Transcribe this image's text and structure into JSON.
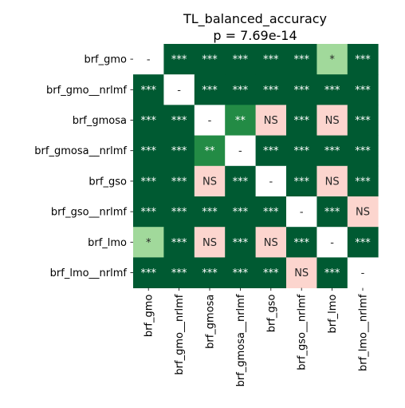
{
  "chart_data": {
    "type": "heatmap",
    "title": "TL_balanced_accuracy",
    "subtitle": "p = 7.69e-14",
    "row_labels": [
      "brf_gmo",
      "brf_gmo__nrlmf",
      "brf_gmosa",
      "brf_gmosa__nrlmf",
      "brf_gso",
      "brf_gso__nrlmf",
      "brf_lmo",
      "brf_lmo__nrlmf"
    ],
    "col_labels": [
      "brf_gmo",
      "brf_gmo__nrlmf",
      "brf_gmosa",
      "brf_gmosa__nrlmf",
      "brf_gso",
      "brf_gso__nrlmf",
      "brf_lmo",
      "brf_lmo__nrlmf"
    ],
    "cells": [
      [
        "-",
        "***",
        "***",
        "***",
        "***",
        "***",
        "*",
        "***"
      ],
      [
        "***",
        "-",
        "***",
        "***",
        "***",
        "***",
        "***",
        "***"
      ],
      [
        "***",
        "***",
        "-",
        "**",
        "NS",
        "***",
        "NS",
        "***"
      ],
      [
        "***",
        "***",
        "**",
        "-",
        "***",
        "***",
        "***",
        "***"
      ],
      [
        "***",
        "***",
        "NS",
        "***",
        "-",
        "***",
        "NS",
        "***"
      ],
      [
        "***",
        "***",
        "***",
        "***",
        "***",
        "-",
        "***",
        "NS"
      ],
      [
        "*",
        "***",
        "NS",
        "***",
        "NS",
        "***",
        "-",
        "***"
      ],
      [
        "***",
        "***",
        "***",
        "***",
        "***",
        "NS",
        "***",
        "-"
      ]
    ],
    "colors": {
      "***": "#005a32",
      "**": "#238b45",
      "*": "#a1d99b",
      "NS": "#fcd5ce",
      "-": "#ffffff"
    },
    "text_colors": {
      "***": "#ffffff",
      "**": "#ffffff",
      "*": "#262626",
      "NS": "#262626",
      "-": "#262626"
    }
  }
}
